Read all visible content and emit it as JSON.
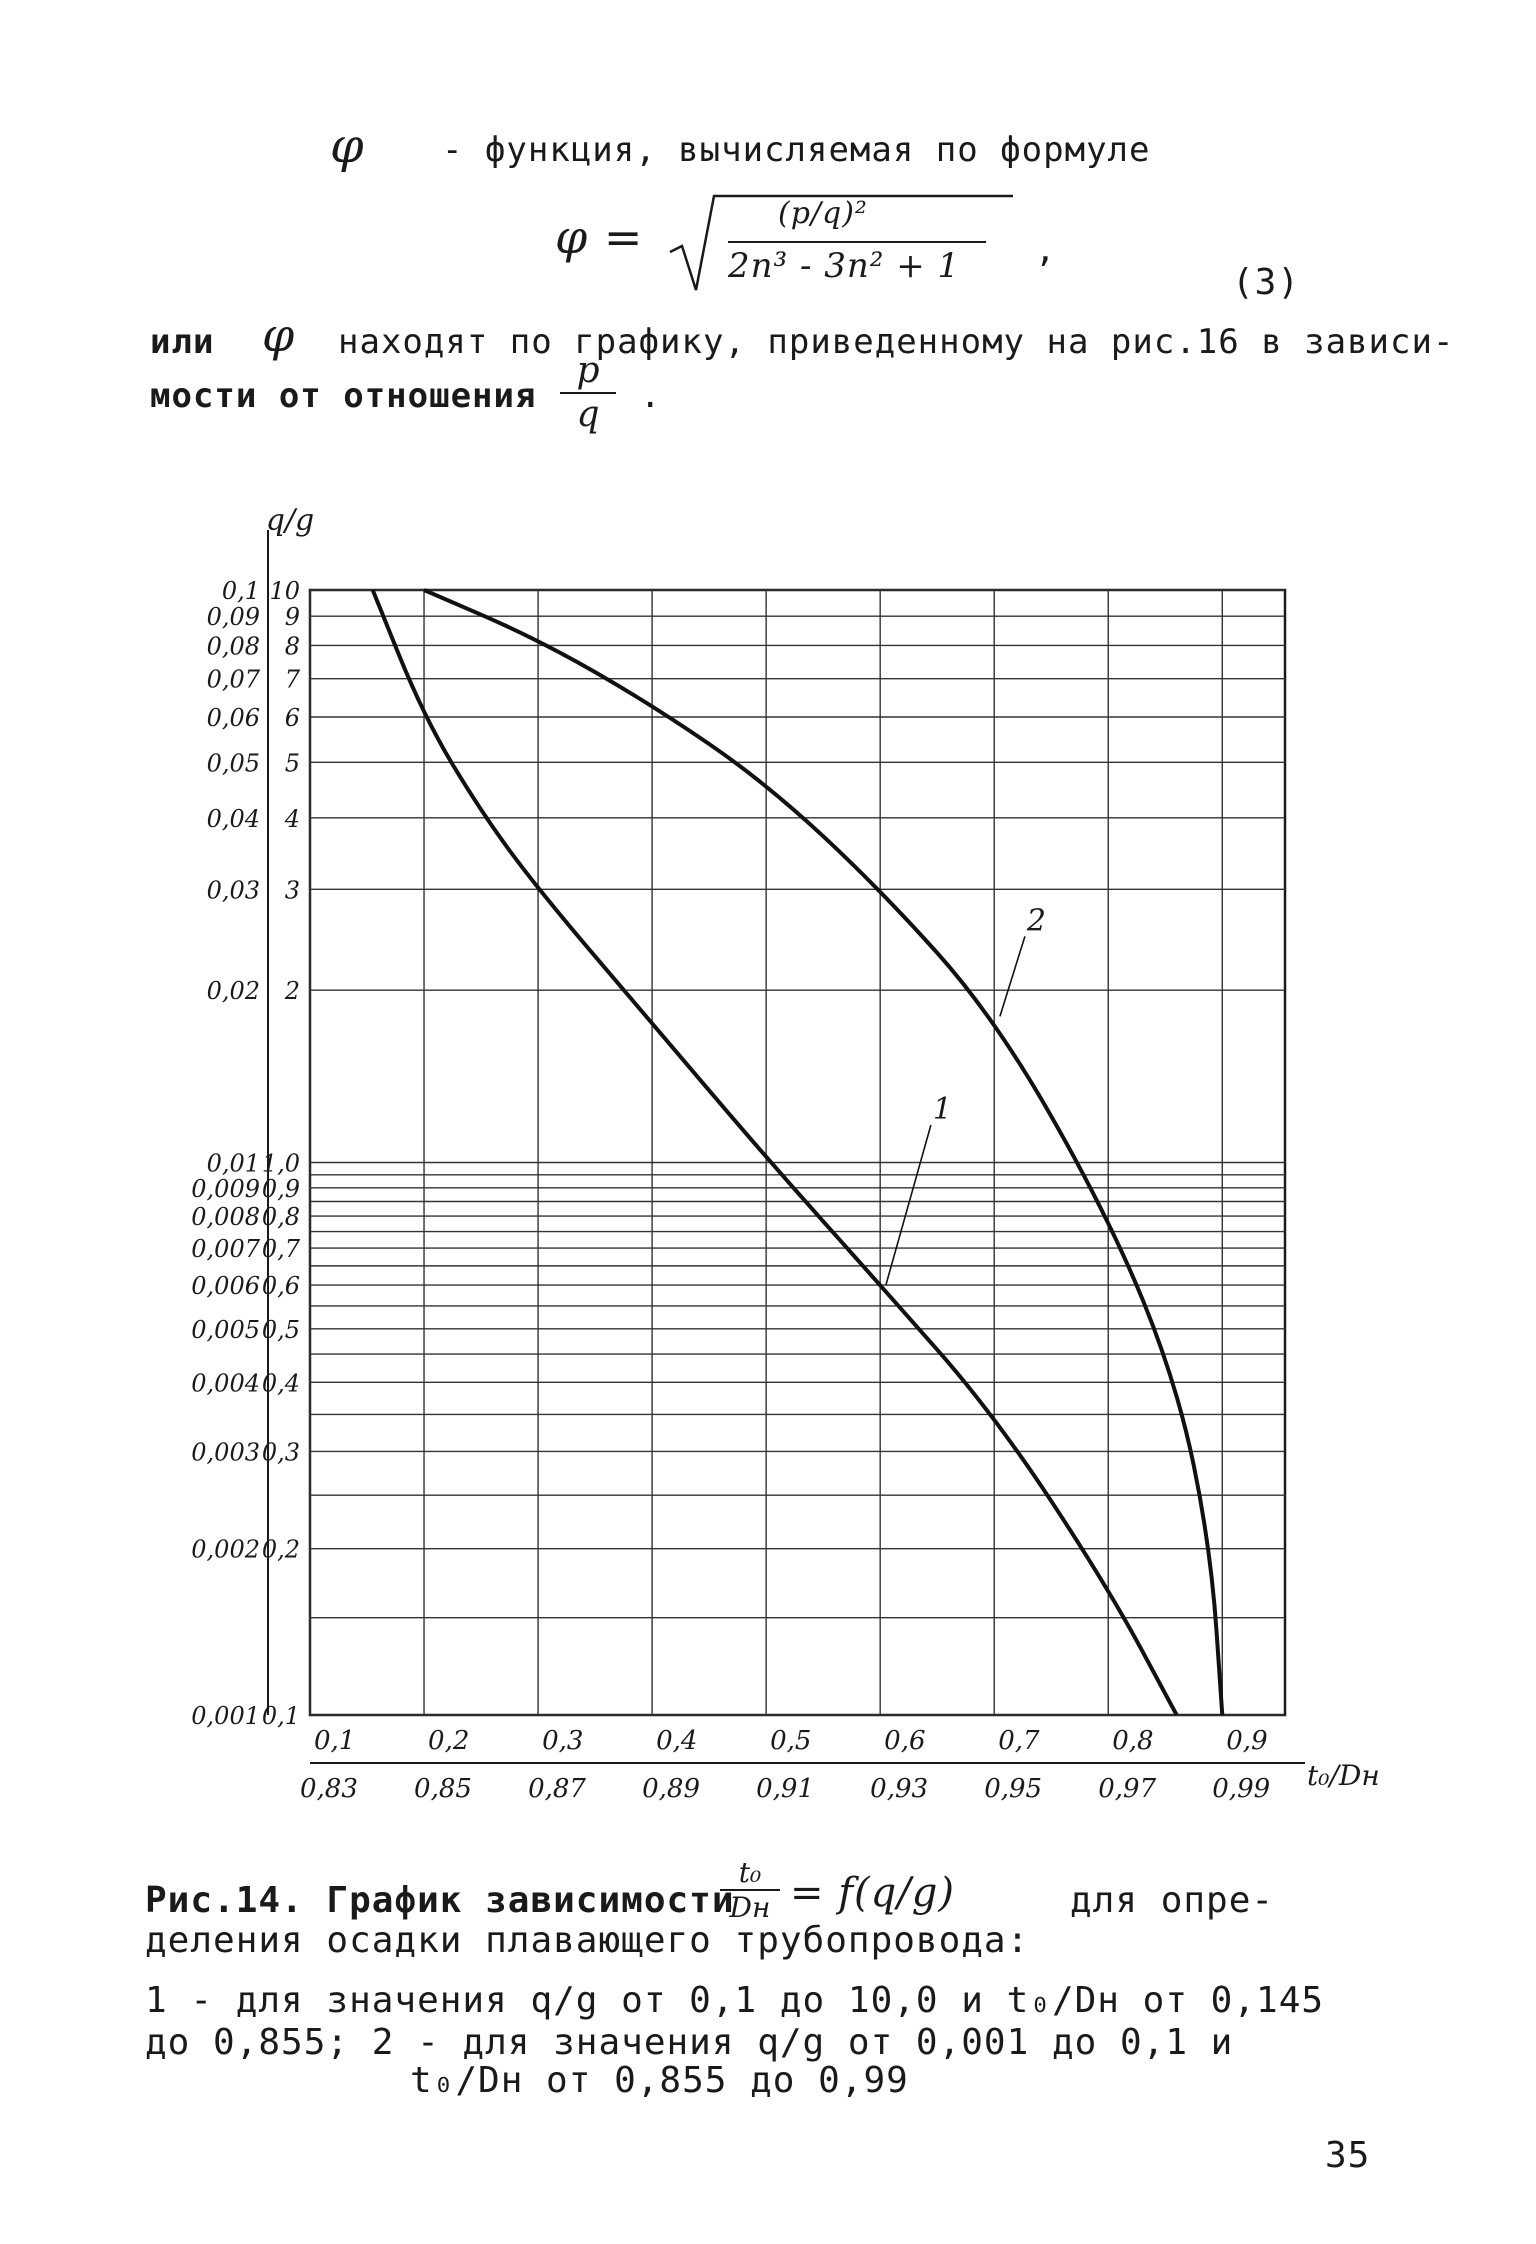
{
  "intro": {
    "phi_symbol": "φ",
    "line1_text": "- функция, вычисляемая по формуле",
    "formula_lhs": "φ =",
    "formula_num": "(p/q)²",
    "formula_den": "2n³ - 3n² + 1",
    "formula_comma": ",",
    "eq_number": "(3)",
    "line2_a": "или",
    "line2_b": "находят по графику, приведенному на рис.16 в зависи-",
    "line3_a": "мости от отношения",
    "line3_frac_num": "p",
    "line3_frac_den": "q",
    "line3_end": "."
  },
  "chart_data": {
    "type": "line",
    "title": "",
    "ylabel": "q/g",
    "xlabel": "t₀/Dн",
    "y_scale": "log",
    "grid": true,
    "y_ticks_outer": [
      "0,1",
      "0,09",
      "0,08",
      "0,07",
      "0,06",
      "0,05",
      "0,04",
      "0,03",
      "0,02",
      "0,01",
      "0,009",
      "0,008",
      "0,007",
      "0,006",
      "0,005",
      "0,004",
      "0,003",
      "0,002",
      "0,001"
    ],
    "y_ticks_inner": [
      "10",
      "9",
      "8",
      "7",
      "6",
      "5",
      "4",
      "3",
      "2",
      "1,0",
      "0,9",
      "0,8",
      "0,7",
      "0,6",
      "0,5",
      "0,4",
      "0,3",
      "0,2",
      "0,1"
    ],
    "x_ticks_top": [
      "0,1",
      "0,2",
      "0,3",
      "0,4",
      "0,5",
      "0,6",
      "0,7",
      "0,8",
      "0,9"
    ],
    "x_ticks_bottom": [
      "0,83",
      "0,85",
      "0,87",
      "0,89",
      "0,91",
      "0,93",
      "0,95",
      "0,97",
      "0,99"
    ],
    "series": [
      {
        "name": "1",
        "x": [
          0.155,
          0.2,
          0.25,
          0.3,
          0.4,
          0.5,
          0.6,
          0.7,
          0.8,
          0.86
        ],
        "y": [
          10,
          6,
          4.1,
          3.0,
          1.75,
          1.02,
          0.6,
          0.35,
          0.17,
          0.1
        ]
      },
      {
        "name": "2",
        "x": [
          0.2,
          0.3,
          0.4,
          0.5,
          0.6,
          0.7,
          0.8,
          0.86,
          0.89,
          0.9
        ],
        "y": [
          10,
          8.2,
          6.3,
          4.6,
          3.0,
          1.8,
          0.8,
          0.4,
          0.2,
          0.1
        ]
      }
    ]
  },
  "caption": {
    "line1_a": "Рис.14. График зависимости",
    "frac_num": "t₀",
    "frac_den": "Dн",
    "line1_mid": "= f(q/g)",
    "line1_b": "для опре-",
    "line2": "деления осадки плавающего трубопровода:",
    "line3": "1 - для значения q/g от 0,1 до 10,0 и t₀/Dн от 0,145",
    "line4": "до 0,855; 2 - для значения q/g от 0,001 до 0,1 и",
    "line5": "t₀/Dн от 0,855 до 0,99"
  },
  "page_number": "35"
}
